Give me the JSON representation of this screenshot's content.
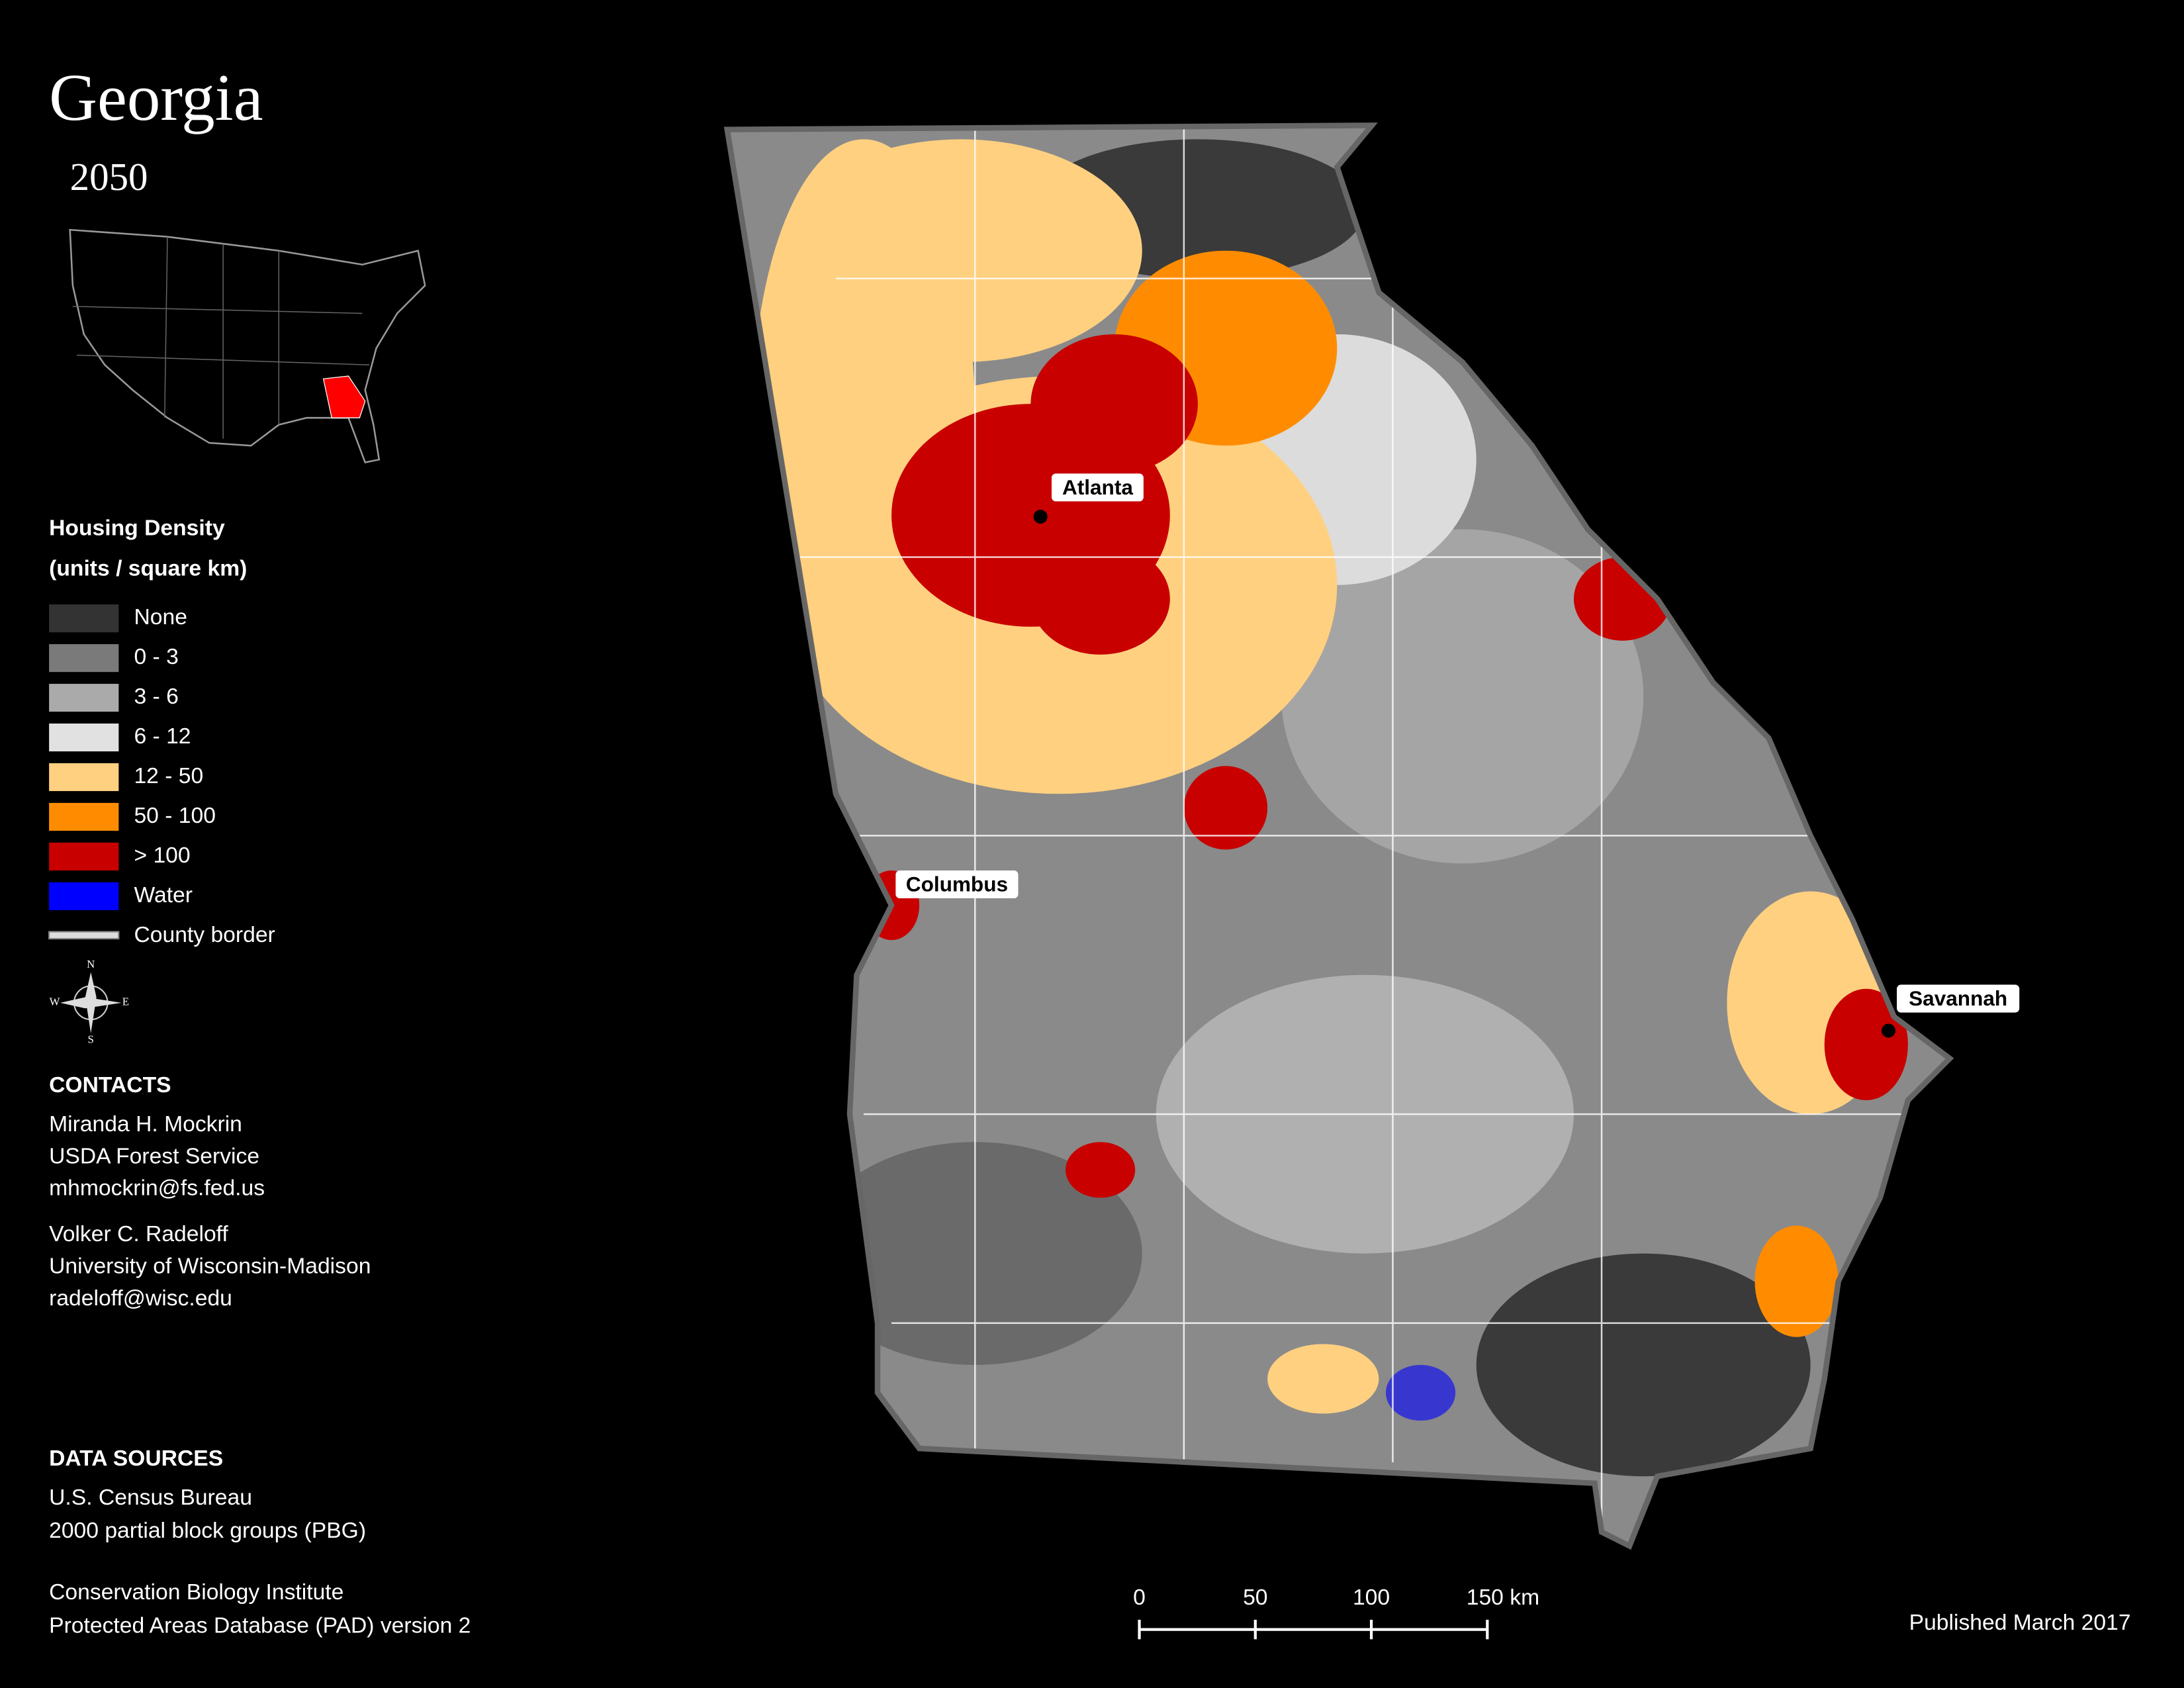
{
  "header": {
    "title": "Georgia",
    "subtitle": "2050"
  },
  "legend": {
    "title": "Housing Density",
    "subtitle": "(units / square km)",
    "items": [
      {
        "label": "None",
        "color": "#333333"
      },
      {
        "label": "0 - 3",
        "color": "#7a7a7a"
      },
      {
        "label": "3 - 6",
        "color": "#aaaaaa"
      },
      {
        "label": "6 - 12",
        "color": "#e1e1e1"
      },
      {
        "label": "12 - 50",
        "color": "#ffd080"
      },
      {
        "label": "50 - 100",
        "color": "#ff8c00"
      },
      {
        "label": "> 100",
        "color": "#c80000"
      },
      {
        "label": "Water",
        "color": "#0000ff"
      },
      {
        "label": "County border",
        "color": "#dddddd"
      }
    ]
  },
  "compass": {
    "n": "N",
    "s": "S",
    "e": "E",
    "w": "W"
  },
  "contacts": {
    "title": "CONTACTS",
    "people": [
      [
        "Miranda H. Mockrin",
        "USDA Forest Service",
        "mhmockrin@fs.fed.us"
      ],
      [
        "Volker C. Radeloff",
        "University of Wisconsin-Madison",
        "radeloff@wisc.edu"
      ]
    ]
  },
  "sources": {
    "title": "DATA SOURCES",
    "lines": [
      "U.S. Census Bureau",
      "2000 partial block groups (PBG)",
      "Conservation Biology Institute",
      "Protected Areas Database (PAD) version 2"
    ]
  },
  "cities": [
    "Atlanta",
    "Columbus",
    "Savannah"
  ],
  "scale_bar": [
    "0",
    "50",
    "100",
    "150 km"
  ],
  "published": "Published March 2017"
}
